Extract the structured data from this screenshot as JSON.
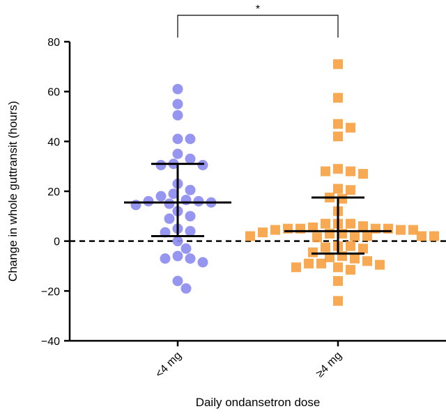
{
  "chart_data": {
    "type": "scatter",
    "title": "",
    "xlabel": "Daily ondansetron dose",
    "ylabel": "Change in whole guttransit (hours)",
    "categories": [
      "<4 mg",
      "≥4 mg"
    ],
    "ylim": [
      -40,
      80
    ],
    "yticks": [
      -40,
      -20,
      0,
      20,
      40,
      60,
      80
    ],
    "ytick_labels": [
      "−40",
      "−20",
      "0",
      "20",
      "40",
      "60",
      "80"
    ],
    "reference_line": 0,
    "significance": {
      "label": "*",
      "between": [
        "<4 mg",
        "≥4 mg"
      ]
    },
    "series": [
      {
        "category": "<4 mg",
        "marker": "circle",
        "color": "#8b8bef",
        "values": [
          61,
          55,
          50.5,
          41,
          41,
          35,
          33,
          31,
          30.5,
          30.5,
          23,
          20.5,
          19,
          18,
          16.5,
          16,
          16,
          15.5,
          15,
          14.5,
          12,
          10,
          9,
          5,
          4,
          3.5,
          0,
          -3,
          -6,
          -7,
          -7,
          -8.5,
          -16,
          -19
        ],
        "mean": 15.5,
        "ci": [
          2,
          31
        ]
      },
      {
        "category": "≥4 mg",
        "marker": "square",
        "color": "#f7a040",
        "values": [
          71,
          57.5,
          47,
          45.5,
          42,
          29,
          28,
          28,
          27,
          21,
          20.5,
          17.5,
          17,
          12,
          7,
          7,
          7,
          6,
          5.5,
          5,
          5,
          5,
          5,
          4.5,
          4.5,
          4.5,
          3.5,
          3,
          3,
          2,
          2,
          2,
          2,
          2,
          1.5,
          -2,
          -2,
          -2.5,
          -3,
          -4.5,
          -6,
          -6.5,
          -7,
          -8,
          -9,
          -9,
          -9.5,
          -10.5,
          -10.5,
          -11.5,
          -16,
          -24
        ],
        "mean": 4,
        "ci": [
          -5,
          17.5
        ]
      }
    ]
  }
}
